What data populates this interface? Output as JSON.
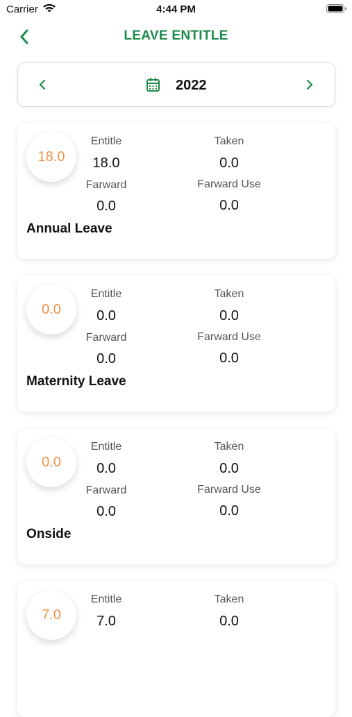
{
  "status_bar": {
    "carrier": "Carrier",
    "time": "4:44 PM"
  },
  "header": {
    "title": "LEAVE ENTITLE"
  },
  "year_selector": {
    "year": "2022"
  },
  "cards": [
    {
      "balance": "18.0",
      "entitle_label": "Entitle",
      "entitle": "18.0",
      "taken_label": "Taken",
      "taken": "0.0",
      "farward_label": "Farward",
      "farward": "0.0",
      "farward_use_label": "Farward Use",
      "farward_use": "0.0",
      "name": "Annual Leave"
    },
    {
      "balance": "0.0",
      "entitle_label": "Entitle",
      "entitle": "0.0",
      "taken_label": "Taken",
      "taken": "0.0",
      "farward_label": "Farward",
      "farward": "0.0",
      "farward_use_label": "Farward Use",
      "farward_use": "0.0",
      "name": "Maternity Leave"
    },
    {
      "balance": "0.0",
      "entitle_label": "Entitle",
      "entitle": "0.0",
      "taken_label": "Taken",
      "taken": "0.0",
      "farward_label": "Farward",
      "farward": "0.0",
      "farward_use_label": "Farward Use",
      "farward_use": "0.0",
      "name": "Onside"
    },
    {
      "balance": "7.0",
      "entitle_label": "Entitle",
      "entitle": "7.0",
      "taken_label": "Taken",
      "taken": "0.0"
    }
  ]
}
